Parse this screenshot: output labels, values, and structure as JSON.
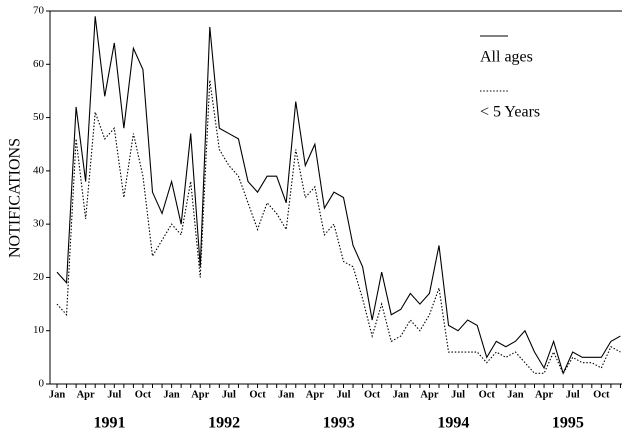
{
  "chart_data": {
    "type": "line",
    "ylabel": "NOTIFICATIONS",
    "categories": [
      "Jan",
      null,
      null,
      "Apr",
      null,
      null,
      "Jul",
      null,
      null,
      "Oct",
      null,
      null,
      "Jan",
      null,
      null,
      "Apr",
      null,
      null,
      "Jul",
      null,
      null,
      "Oct",
      null,
      null,
      "Jan",
      null,
      null,
      "Apr",
      null,
      null,
      "Jul",
      null,
      null,
      "Oct",
      null,
      null,
      "Jan",
      null,
      null,
      "Apr",
      null,
      null,
      "Jul",
      null,
      null,
      "Oct",
      null,
      null,
      "Jan",
      null,
      null,
      "Apr",
      null,
      null,
      "Jul",
      null,
      null,
      "Oct",
      null,
      null
    ],
    "year_labels": [
      "1991",
      "1992",
      "1993",
      "1994",
      "1995"
    ],
    "series": [
      {
        "name": "All ages",
        "color": "#000000",
        "style": "solid",
        "values": [
          21,
          19,
          52,
          38,
          69,
          54,
          64,
          48,
          63,
          59,
          36,
          32,
          38,
          30,
          47,
          22,
          67,
          48,
          47,
          46,
          38,
          36,
          39,
          39,
          34,
          53,
          41,
          45,
          33,
          36,
          35,
          26,
          22,
          12,
          21,
          13,
          14,
          17,
          15,
          17,
          26,
          11,
          10,
          12,
          11,
          5,
          8,
          7,
          8,
          10,
          6,
          3,
          8,
          2,
          6,
          5,
          5,
          5,
          8,
          9
        ]
      },
      {
        "name": "< 5 Years",
        "color": "#000000",
        "style": "dotted",
        "values": [
          15,
          13,
          46,
          31,
          51,
          46,
          48,
          35,
          47,
          39,
          24,
          27,
          30,
          28,
          38,
          20,
          57,
          44,
          41,
          39,
          34,
          29,
          34,
          32,
          29,
          44,
          35,
          37,
          28,
          30,
          23,
          22,
          16,
          9,
          15,
          8,
          9,
          12,
          10,
          13,
          18,
          6,
          6,
          6,
          6,
          4,
          6,
          5,
          6,
          4,
          2,
          2,
          6,
          2,
          5,
          4,
          4,
          3,
          7,
          6
        ]
      }
    ],
    "ylim": [
      0,
      70
    ],
    "yticks": [
      0,
      10,
      20,
      30,
      40,
      50,
      60,
      70
    ],
    "legend": "upper right"
  }
}
